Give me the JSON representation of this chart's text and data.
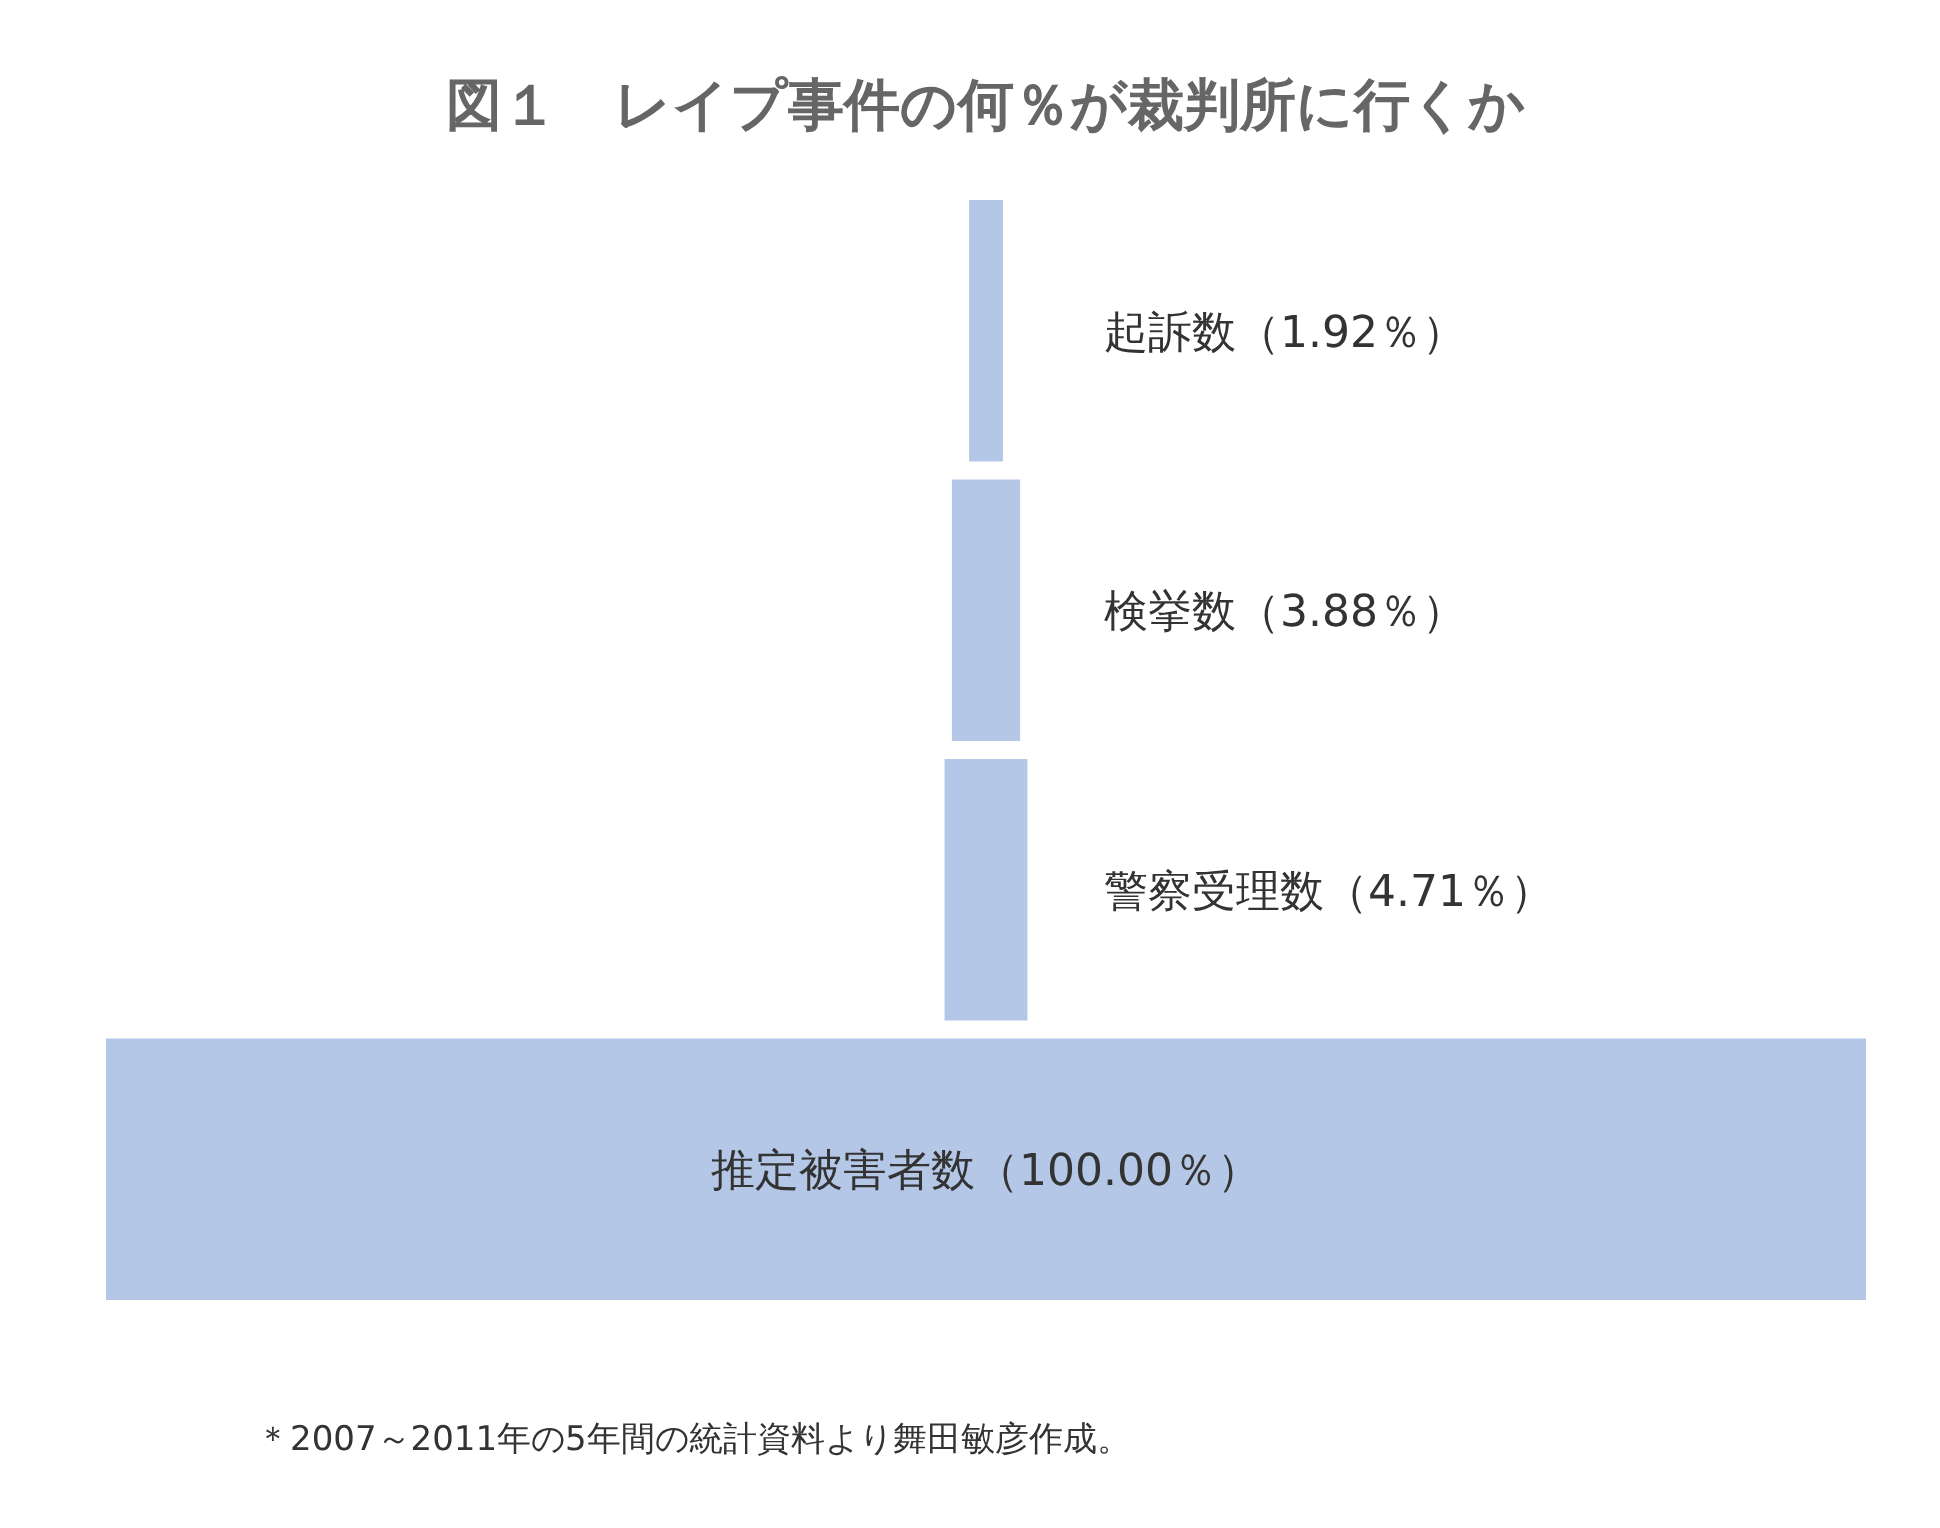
{
  "chart_data": {
    "type": "other",
    "title": "図１　レイプ事件の何％が裁判所に行くか",
    "categories": [
      "起訴数",
      "検挙数",
      "警察受理数",
      "推定被害者数"
    ],
    "values": [
      1.92,
      3.88,
      4.71,
      100.0
    ],
    "value_labels": [
      "（1.92％）",
      "（3.88％）",
      "（4.71％）",
      "（100.00％）"
    ],
    "color": "#b4c7e7",
    "annotations": [
      "＊2007～2011年の5年間の統計資料より舞田敏彦作成。"
    ]
  }
}
